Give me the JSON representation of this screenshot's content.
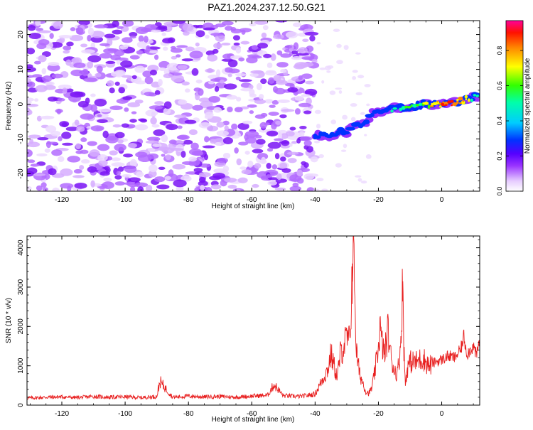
{
  "figure": {
    "title": "PAZ1.2024.237.12.50.G21"
  },
  "chart_data": [
    {
      "type": "heatmap",
      "title": "",
      "xlabel": "Height of straight line (km)",
      "ylabel": "Frequency (Hz)",
      "xlim": [
        -131,
        12
      ],
      "ylim": [
        -25,
        24
      ],
      "xticks": [
        -120,
        -100,
        -80,
        -60,
        -40,
        -20,
        0
      ],
      "yticks": [
        -20,
        -10,
        0,
        10,
        20
      ],
      "grid": false,
      "colorbar": {
        "label": "Normalized spectral amplitude",
        "range": [
          0,
          0.97
        ],
        "ticks": [
          0.0,
          0.2,
          0.4,
          0.6,
          0.8
        ],
        "tick_labels": [
          "0.0",
          "0.2",
          "0.4",
          "0.6",
          "0.8"
        ],
        "colormap": [
          "#ffffff",
          "#e6ccff",
          "#8800ff",
          "#0000ff",
          "#00e5ff",
          "#00ff00",
          "#ffff00",
          "#ff8800",
          "#ff0000",
          "#ff00aa"
        ]
      },
      "noise_region": {
        "x": [
          -131,
          -40
        ],
        "y": [
          -25,
          24
        ],
        "level": [
          0.05,
          0.2
        ]
      },
      "signal_ridge": {
        "x": [
          -40,
          -36,
          -33,
          -30,
          -27,
          -24,
          -22,
          -18,
          -14,
          -10,
          -6,
          -2,
          2,
          6,
          10,
          12
        ],
        "y": [
          -9,
          -9.5,
          -8,
          -8,
          -6,
          -5.5,
          -2.5,
          -2,
          -1,
          -1,
          0,
          0,
          0,
          1,
          2,
          2.5
        ],
        "amplitude": [
          0.25,
          0.3,
          0.3,
          0.3,
          0.35,
          0.35,
          0.35,
          0.35,
          0.45,
          0.5,
          0.6,
          0.75,
          0.85,
          0.75,
          0.5,
          0.45
        ]
      }
    },
    {
      "type": "line",
      "title": "",
      "xlabel": "Height of straight line (km)",
      "ylabel": "SNR (10 * v/v)",
      "xlim": [
        -131,
        12
      ],
      "ylim": [
        0,
        4300
      ],
      "xticks": [
        -120,
        -100,
        -80,
        -60,
        -40,
        -20,
        0
      ],
      "yticks": [
        0,
        1000,
        2000,
        3000,
        4000
      ],
      "grid": false,
      "series": [
        {
          "color": "#e82020",
          "x": [
            -131,
            -125,
            -120,
            -115,
            -110,
            -105,
            -100,
            -95,
            -90,
            -89,
            -85,
            -80,
            -75,
            -70,
            -65,
            -60,
            -55,
            -53,
            -50,
            -45,
            -42,
            -40,
            -38,
            -36,
            -35,
            -34,
            -33,
            -32,
            -31,
            -30,
            -29,
            -28.2,
            -27.8,
            -27,
            -26,
            -25,
            -24,
            -23,
            -22,
            -21,
            -20,
            -19.5,
            -19,
            -18,
            -17,
            -16,
            -15,
            -14,
            -13,
            -12.3,
            -12,
            -11.5,
            -11,
            -10,
            -8,
            -6,
            -4,
            -2,
            0,
            2,
            4,
            6,
            7,
            8,
            10,
            11,
            12
          ],
          "y": [
            180,
            200,
            210,
            190,
            220,
            200,
            210,
            190,
            220,
            600,
            200,
            230,
            210,
            220,
            200,
            230,
            250,
            520,
            240,
            220,
            250,
            280,
            600,
            900,
            1300,
            1000,
            700,
            1300,
            1500,
            1700,
            1600,
            3600,
            4250,
            1400,
            800,
            600,
            350,
            300,
            450,
            900,
            1500,
            2000,
            1600,
            1300,
            1900,
            1200,
            900,
            800,
            1500,
            3150,
            1600,
            500,
            900,
            1100,
            1100,
            1200,
            1000,
            1100,
            1150,
            1250,
            1200,
            1400,
            1750,
            1300,
            1500,
            1250,
            1650
          ]
        }
      ]
    }
  ]
}
